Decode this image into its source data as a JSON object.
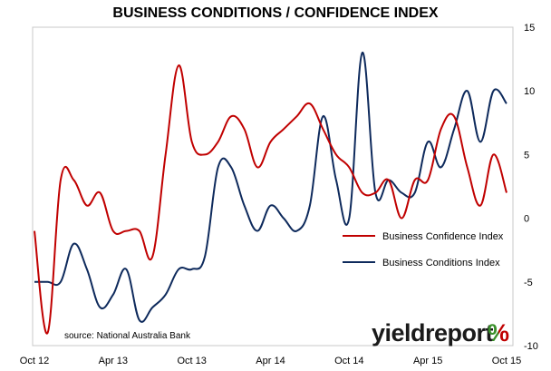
{
  "chart_data": {
    "type": "line",
    "title": "BUSINESS CONDITIONS / CONFIDENCE INDEX",
    "x_labels": [
      "Oct 12",
      "Apr 13",
      "Oct 13",
      "Apr 14",
      "Oct 14",
      "Apr 15",
      "Oct 15"
    ],
    "ylim": [
      -10,
      15
    ],
    "y_ticks": [
      "-10",
      "-5",
      "0",
      "5",
      "10",
      "15"
    ],
    "y_tick_values": [
      -10,
      -5,
      0,
      5,
      10,
      15
    ],
    "grid": false,
    "legend_position": "right",
    "series": [
      {
        "name": "Business Confidence Index",
        "color": "#c00000",
        "values": [
          -1,
          -9,
          3,
          3,
          1,
          2,
          -1,
          -1,
          -1,
          -3,
          5,
          12,
          6,
          5,
          6,
          8,
          7,
          4,
          6,
          7,
          8,
          9,
          7,
          5,
          4,
          2,
          2,
          3,
          0,
          3,
          3,
          7,
          8,
          4,
          1,
          5,
          2
        ]
      },
      {
        "name": "Business Conditions Index",
        "color": "#0e2a5c",
        "values": [
          -5,
          -5,
          -5,
          -2,
          -4,
          -7,
          -6,
          -4,
          -8,
          -7,
          -6,
          -4,
          -4,
          -3,
          4,
          4,
          1,
          -1,
          1,
          0,
          -1,
          1,
          8,
          3,
          0,
          13,
          2,
          3,
          2,
          2,
          6,
          4,
          7,
          10,
          6,
          10,
          9
        ]
      }
    ],
    "source": "source: National Australia Bank",
    "brand": {
      "name": "yieldreport",
      "symbol": "%",
      "symbol_colors": [
        "#3a8f2a",
        "#c00000"
      ]
    }
  }
}
